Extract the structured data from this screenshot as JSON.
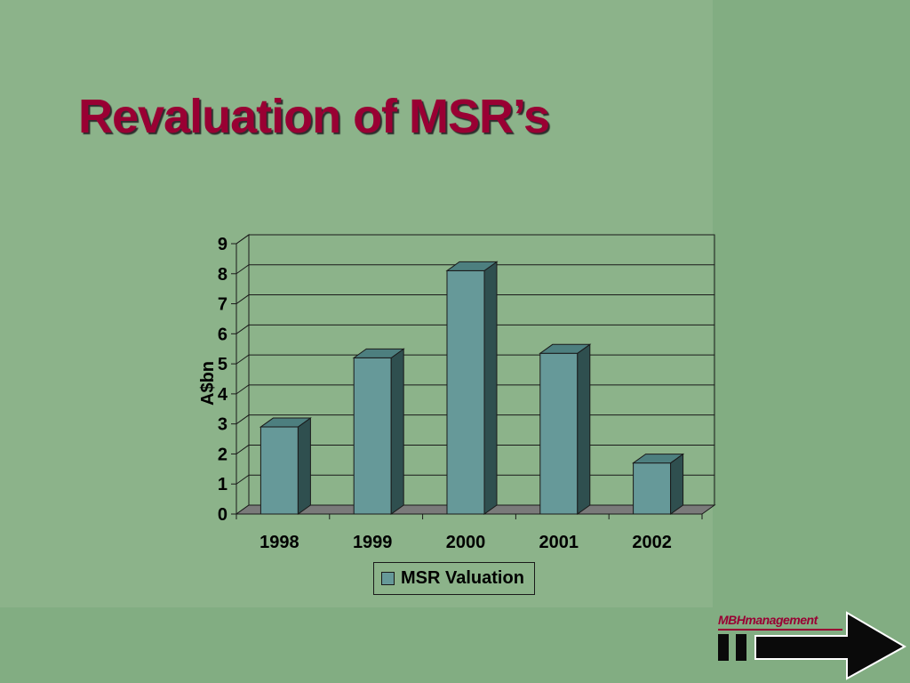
{
  "slide": {
    "title": "Revaluation of MSR’s"
  },
  "logo": {
    "text": "MBHmanagement"
  },
  "colors": {
    "background": "#8cb38a",
    "title": "#990033",
    "bar_front": "#669999",
    "bar_side": "#2f4f4f",
    "bar_top": "#4d7f7f",
    "floor": "#7a7a7a"
  },
  "chart_data": {
    "type": "bar",
    "categories": [
      "1998",
      "1999",
      "2000",
      "2001",
      "2002"
    ],
    "series": [
      {
        "name": "MSR Valuation",
        "values": [
          2.9,
          5.2,
          8.1,
          5.35,
          1.7
        ]
      }
    ],
    "title": "",
    "xlabel": "",
    "ylabel": "A$bn",
    "ylim": [
      0,
      9
    ],
    "yticks": [
      "0",
      "1",
      "2",
      "3",
      "4",
      "5",
      "6",
      "7",
      "8",
      "9"
    ],
    "grid": true,
    "legend": "bottom"
  }
}
